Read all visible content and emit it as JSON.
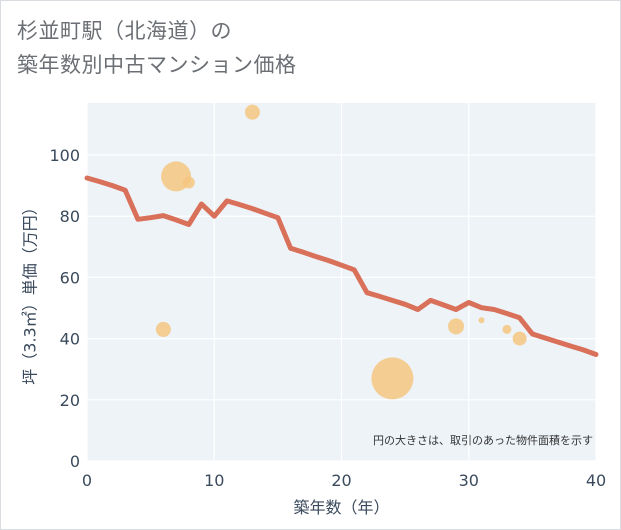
{
  "title_line1": "杉並町駅（北海道）の",
  "title_line2": "築年数別中古マンション価格",
  "note": "円の大きさは、取引のあった物件面積を示す",
  "colors": {
    "line": "#d9705a",
    "bubble": "#f5c680",
    "plot_bg": "#eef3f8",
    "grid": "#ffffff",
    "text": "#3a4a5c"
  },
  "chart_data": {
    "type": "line",
    "xlabel": "築年数（年）",
    "ylabel": "坪（3.3㎡）単価（万円）",
    "xlim": [
      0,
      40
    ],
    "ylim": [
      0,
      117
    ],
    "xticks": [
      0,
      10,
      20,
      30,
      40
    ],
    "yticks": [
      0,
      20,
      40,
      60,
      80,
      100
    ],
    "grid": true,
    "line_series": {
      "x": [
        0,
        1,
        2,
        3,
        4,
        5,
        6,
        7,
        8,
        9,
        10,
        11,
        12,
        13,
        14,
        15,
        16,
        17,
        18,
        19,
        20,
        21,
        22,
        23,
        24,
        25,
        26,
        27,
        28,
        29,
        30,
        31,
        32,
        33,
        34,
        35,
        36,
        37,
        38,
        39,
        40
      ],
      "y": [
        92.5,
        91.3,
        90,
        88.5,
        79,
        79.5,
        80.2,
        78.8,
        77.3,
        84,
        80,
        85,
        83.8,
        82.5,
        81,
        79.5,
        69.5,
        68.2,
        66.8,
        65.5,
        64,
        62.5,
        55,
        53.8,
        52.5,
        51.2,
        49.5,
        52.5,
        51,
        49.5,
        51.8,
        50.1,
        49.5,
        48.2,
        46.8,
        41.5,
        40.2,
        38.9,
        37.6,
        36.3,
        34.8
      ]
    },
    "bubbles": [
      {
        "x": 6,
        "y": 43,
        "size": 15
      },
      {
        "x": 7,
        "y": 93,
        "size": 30
      },
      {
        "x": 8,
        "y": 91,
        "size": 12
      },
      {
        "x": 13,
        "y": 114,
        "size": 15
      },
      {
        "x": 24,
        "y": 27,
        "size": 42
      },
      {
        "x": 29,
        "y": 44,
        "size": 16
      },
      {
        "x": 31,
        "y": 46,
        "size": 6
      },
      {
        "x": 33,
        "y": 43,
        "size": 9
      },
      {
        "x": 34,
        "y": 40,
        "size": 14
      }
    ]
  }
}
